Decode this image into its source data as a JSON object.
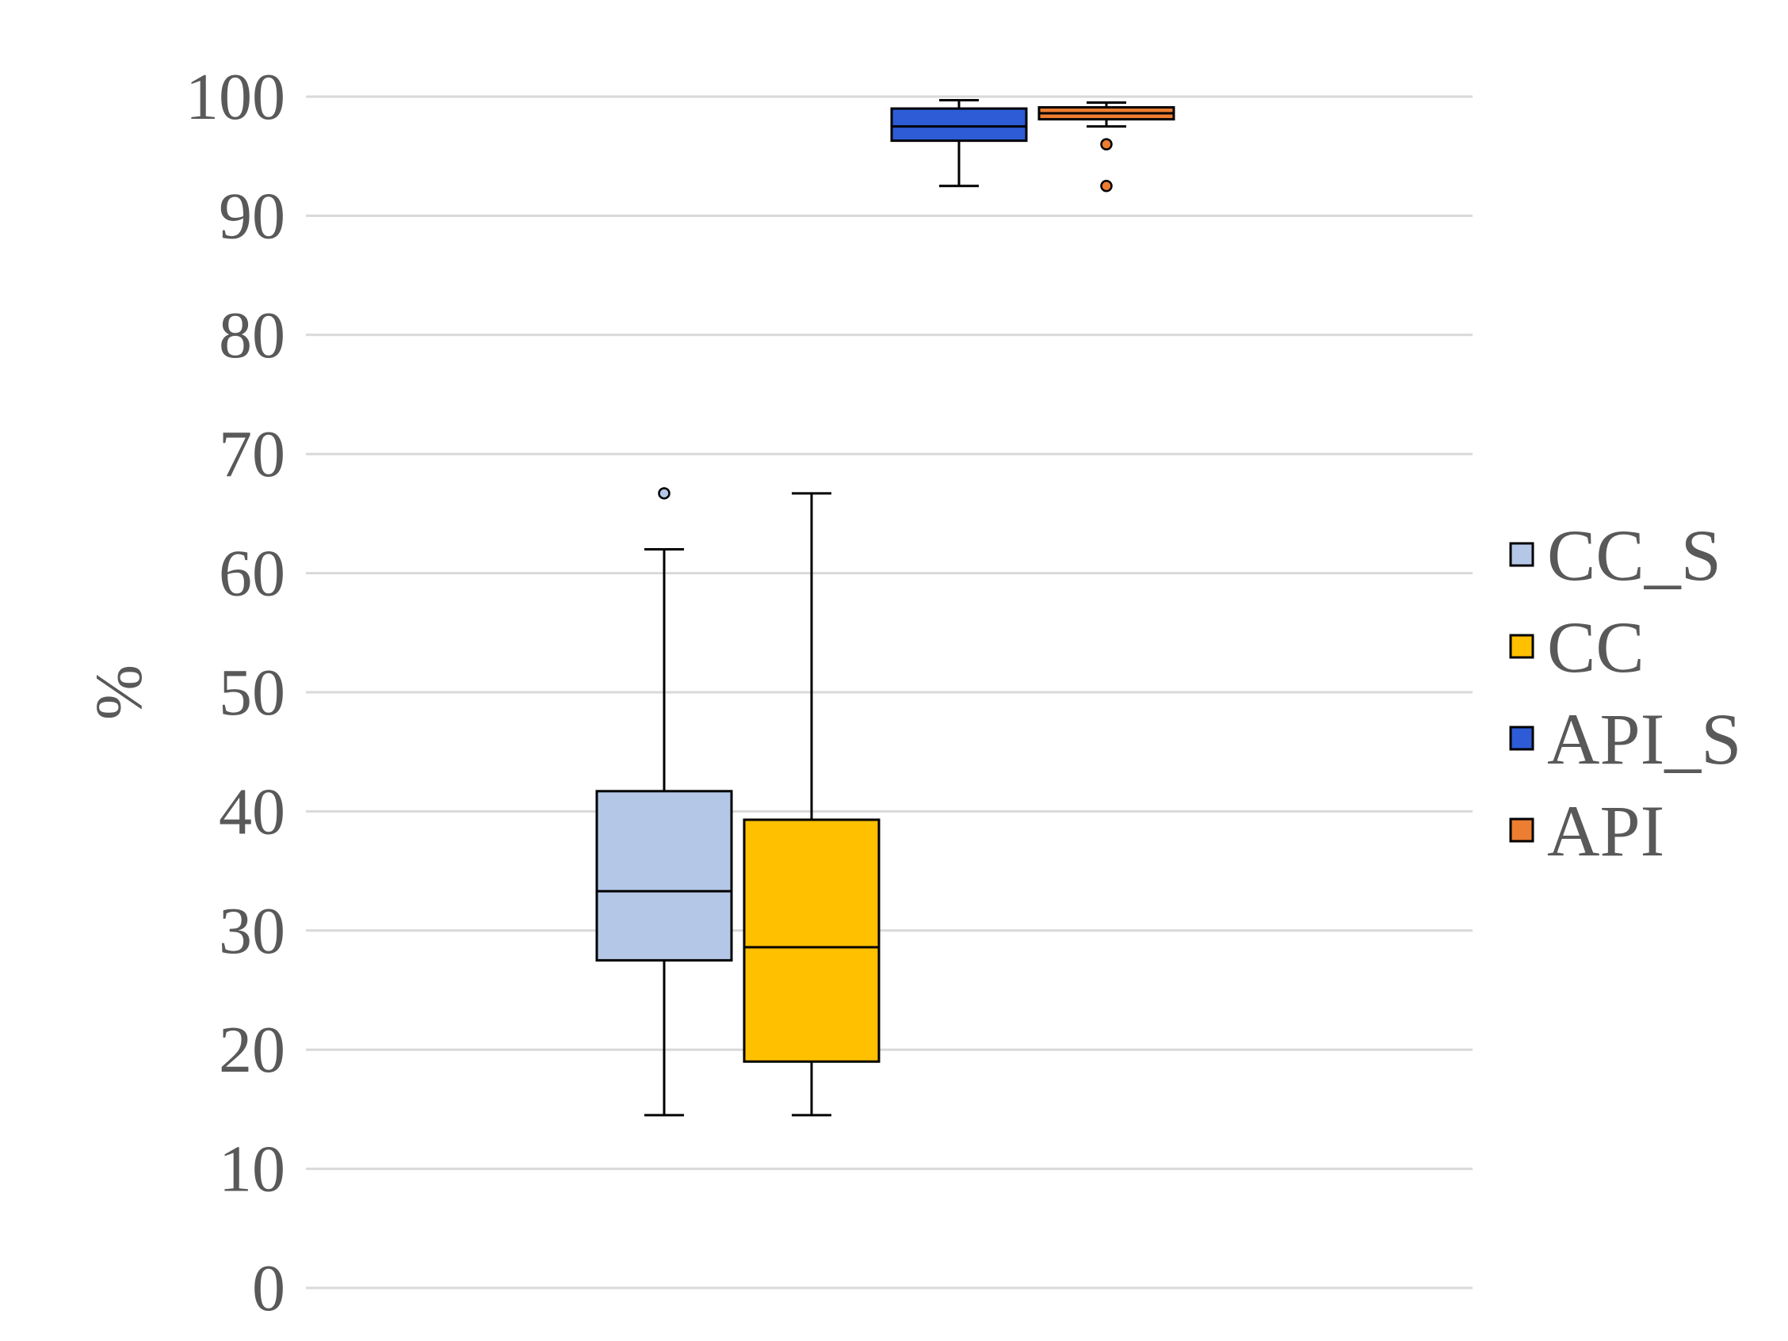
{
  "chart_data": {
    "type": "box",
    "title": "",
    "xlabel": "",
    "ylabel": "%",
    "ylim": [
      0,
      100
    ],
    "yticks": [
      "0",
      "10",
      "20",
      "30",
      "40",
      "50",
      "60",
      "70",
      "80",
      "90",
      "100"
    ],
    "grid": true,
    "legend_position": "right",
    "series": [
      {
        "name": "CC_S",
        "color": "#b4c7e7",
        "min": 14.5,
        "q1": 27.5,
        "median": 33.3,
        "q3": 41.7,
        "max": 62.0,
        "outliers": [
          66.7
        ]
      },
      {
        "name": "CC",
        "color": "#ffc000",
        "min": 14.5,
        "q1": 19.0,
        "median": 28.6,
        "q3": 39.3,
        "max": 66.7,
        "outliers": []
      },
      {
        "name": "API_S",
        "color": "#2e5cd6",
        "min": 92.5,
        "q1": 96.3,
        "median": 97.5,
        "q3": 99.0,
        "max": 99.7,
        "outliers": []
      },
      {
        "name": "API",
        "color": "#ed7d31",
        "min": 97.5,
        "q1": 98.1,
        "median": 98.6,
        "q3": 99.1,
        "max": 99.5,
        "outliers": [
          96.0,
          92.5
        ]
      }
    ]
  }
}
